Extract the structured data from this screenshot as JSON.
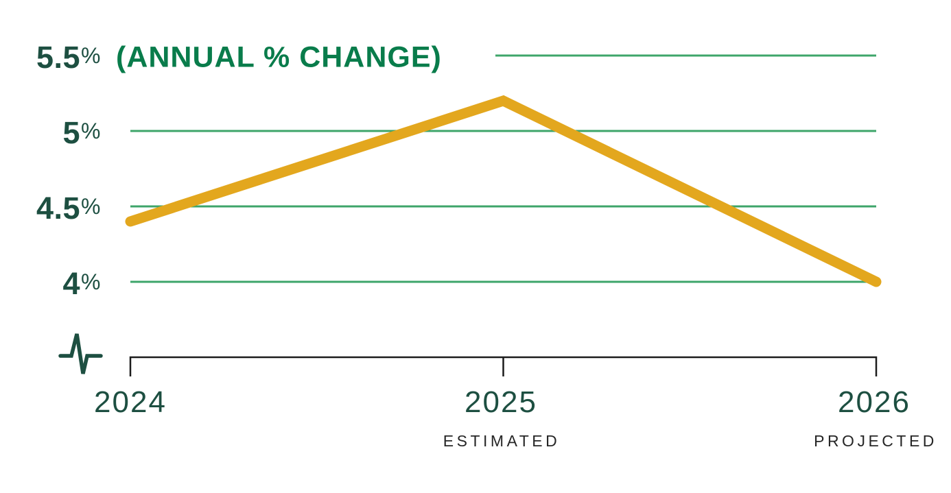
{
  "colors": {
    "background": "#FFFFFF",
    "line": "#E3A71E",
    "gridline": "#3EA56A",
    "dark_green": "#1D4F41",
    "title_green": "#097C4B",
    "axis": "#1C1C1C",
    "sublabel": "#262626"
  },
  "chart_data": {
    "type": "line",
    "title": "(ANNUAL % CHANGE)",
    "x": [
      "2024",
      "2025",
      "2026"
    ],
    "values": [
      4.4,
      5.2,
      4.0
    ],
    "ylim": [
      4,
      5.5
    ],
    "grid": "horizontal",
    "axis_break": true,
    "legend": "none",
    "yticks": [
      {
        "value": 5.5,
        "num": "5.5",
        "suffix": "%"
      },
      {
        "value": 5.0,
        "num": "5",
        "suffix": "%"
      },
      {
        "value": 4.5,
        "num": "4.5",
        "suffix": "%"
      },
      {
        "value": 4.0,
        "num": "4",
        "suffix": "%"
      }
    ],
    "xticks": [
      {
        "year": "2024",
        "sublabel": ""
      },
      {
        "year": "2025",
        "sublabel": "ESTIMATED"
      },
      {
        "year": "2026",
        "sublabel": "PROJECTED"
      }
    ]
  }
}
